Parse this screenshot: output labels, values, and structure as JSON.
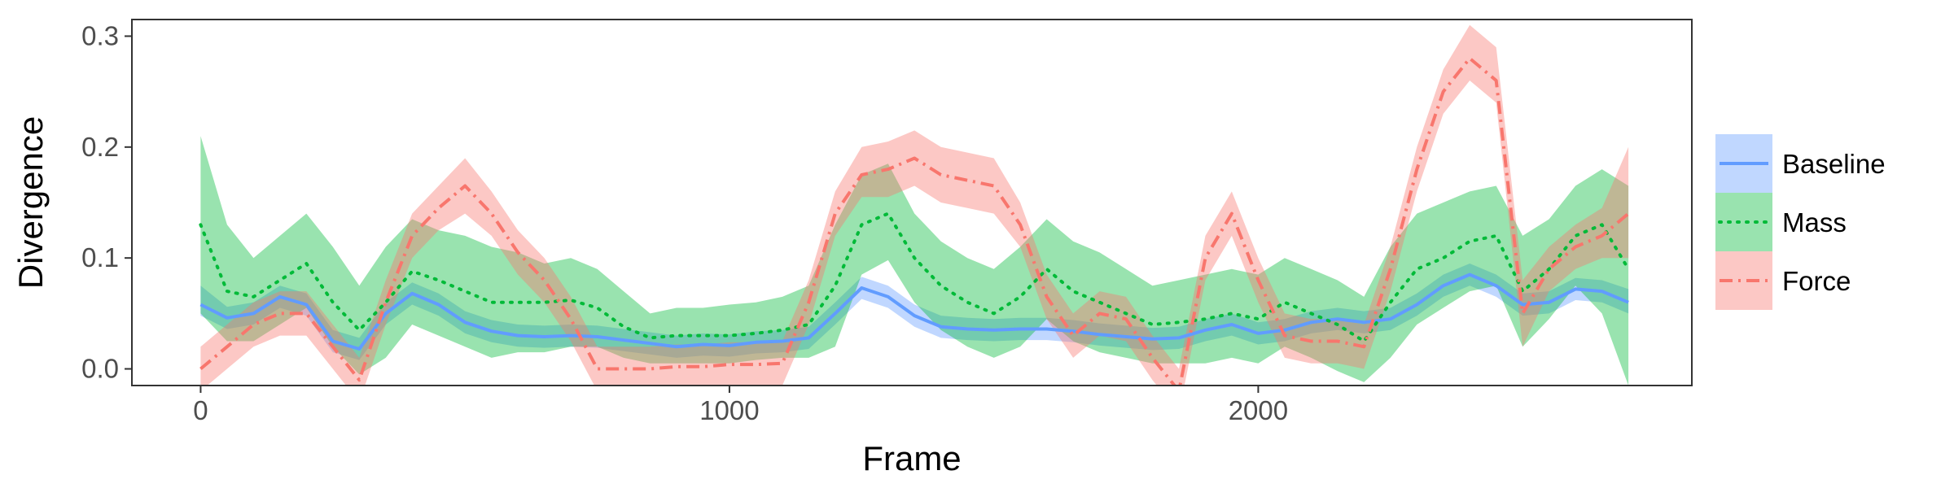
{
  "chart_data": {
    "type": "line",
    "title": "",
    "xlabel": "Frame",
    "ylabel": "Divergence",
    "xlim": [
      -130,
      2820
    ],
    "ylim": [
      -0.015,
      0.315
    ],
    "x_ticks": [
      0,
      1000,
      2000
    ],
    "x_tick_labels": [
      "0",
      "1000",
      "2000"
    ],
    "y_ticks": [
      0.0,
      0.1,
      0.2,
      0.3
    ],
    "y_tick_labels": [
      "0.0",
      "0.1",
      "0.2",
      "0.3"
    ],
    "grid": false,
    "legend_position": "right",
    "x": [
      0,
      50,
      100,
      150,
      200,
      250,
      300,
      350,
      400,
      450,
      500,
      550,
      600,
      650,
      700,
      750,
      800,
      850,
      900,
      950,
      1000,
      1050,
      1100,
      1150,
      1200,
      1250,
      1300,
      1350,
      1400,
      1450,
      1500,
      1550,
      1600,
      1650,
      1700,
      1750,
      1800,
      1850,
      1900,
      1950,
      2000,
      2050,
      2100,
      2150,
      2200,
      2250,
      2300,
      2350,
      2400,
      2450,
      2500,
      2550,
      2600,
      2650,
      2700
    ],
    "series": [
      {
        "name": "Baseline",
        "color": "#619CFF",
        "line_style": "solid",
        "values": [
          0.058,
          0.046,
          0.05,
          0.065,
          0.058,
          0.025,
          0.018,
          0.05,
          0.068,
          0.058,
          0.042,
          0.034,
          0.03,
          0.029,
          0.03,
          0.029,
          0.026,
          0.023,
          0.02,
          0.022,
          0.021,
          0.024,
          0.025,
          0.028,
          0.05,
          0.073,
          0.065,
          0.048,
          0.038,
          0.036,
          0.035,
          0.036,
          0.036,
          0.034,
          0.031,
          0.029,
          0.027,
          0.028,
          0.035,
          0.04,
          0.032,
          0.035,
          0.042,
          0.045,
          0.042,
          0.045,
          0.058,
          0.075,
          0.085,
          0.075,
          0.058,
          0.06,
          0.072,
          0.07,
          0.06
        ],
        "lower": [
          0.048,
          0.036,
          0.04,
          0.055,
          0.048,
          0.015,
          0.008,
          0.04,
          0.058,
          0.048,
          0.032,
          0.024,
          0.02,
          0.019,
          0.02,
          0.019,
          0.016,
          0.013,
          0.01,
          0.012,
          0.011,
          0.014,
          0.015,
          0.018,
          0.04,
          0.063,
          0.055,
          0.038,
          0.028,
          0.026,
          0.025,
          0.026,
          0.026,
          0.024,
          0.021,
          0.019,
          0.017,
          0.018,
          0.025,
          0.03,
          0.022,
          0.025,
          0.032,
          0.035,
          0.032,
          0.035,
          0.048,
          0.065,
          0.075,
          0.065,
          0.048,
          0.05,
          0.062,
          0.06,
          0.05
        ],
        "upper": [
          0.075,
          0.056,
          0.06,
          0.075,
          0.068,
          0.035,
          0.028,
          0.06,
          0.078,
          0.068,
          0.052,
          0.044,
          0.04,
          0.039,
          0.04,
          0.039,
          0.036,
          0.033,
          0.03,
          0.032,
          0.031,
          0.034,
          0.035,
          0.038,
          0.06,
          0.083,
          0.075,
          0.058,
          0.048,
          0.046,
          0.045,
          0.046,
          0.046,
          0.044,
          0.041,
          0.039,
          0.037,
          0.038,
          0.045,
          0.05,
          0.042,
          0.045,
          0.052,
          0.055,
          0.052,
          0.055,
          0.068,
          0.085,
          0.095,
          0.085,
          0.068,
          0.07,
          0.082,
          0.08,
          0.072
        ]
      },
      {
        "name": "Mass",
        "color": "#00BA38",
        "line_style": "dotted",
        "values": [
          0.13,
          0.07,
          0.065,
          0.08,
          0.095,
          0.06,
          0.035,
          0.06,
          0.088,
          0.08,
          0.07,
          0.06,
          0.06,
          0.06,
          0.062,
          0.055,
          0.038,
          0.028,
          0.03,
          0.03,
          0.03,
          0.032,
          0.035,
          0.04,
          0.075,
          0.13,
          0.14,
          0.1,
          0.075,
          0.06,
          0.05,
          0.065,
          0.09,
          0.07,
          0.06,
          0.05,
          0.04,
          0.042,
          0.045,
          0.05,
          0.045,
          0.06,
          0.05,
          0.04,
          0.025,
          0.06,
          0.09,
          0.1,
          0.115,
          0.12,
          0.07,
          0.09,
          0.12,
          0.13,
          0.09
        ],
        "lower": [
          0.05,
          0.025,
          0.025,
          0.04,
          0.055,
          0.02,
          -0.005,
          0.01,
          0.04,
          0.03,
          0.02,
          0.01,
          0.015,
          0.015,
          0.02,
          0.02,
          0.01,
          0.005,
          0.005,
          0.005,
          0.005,
          0.008,
          0.01,
          0.01,
          0.02,
          0.085,
          0.098,
          0.06,
          0.035,
          0.02,
          0.01,
          0.02,
          0.045,
          0.025,
          0.015,
          0.01,
          0.005,
          0.005,
          0.005,
          0.01,
          0.005,
          0.02,
          0.01,
          -0.002,
          -0.012,
          0.01,
          0.04,
          0.055,
          0.07,
          0.075,
          0.02,
          0.045,
          0.075,
          0.05,
          -0.015
        ],
        "upper": [
          0.21,
          0.13,
          0.1,
          0.12,
          0.14,
          0.11,
          0.075,
          0.11,
          0.135,
          0.125,
          0.12,
          0.11,
          0.105,
          0.095,
          0.1,
          0.09,
          0.07,
          0.05,
          0.055,
          0.055,
          0.058,
          0.06,
          0.065,
          0.075,
          0.13,
          0.175,
          0.185,
          0.14,
          0.115,
          0.1,
          0.09,
          0.11,
          0.135,
          0.115,
          0.105,
          0.09,
          0.075,
          0.08,
          0.085,
          0.09,
          0.085,
          0.1,
          0.09,
          0.08,
          0.065,
          0.11,
          0.14,
          0.15,
          0.16,
          0.165,
          0.12,
          0.135,
          0.165,
          0.18,
          0.165
        ]
      },
      {
        "name": "Force",
        "color": "#F8766D",
        "line_style": "dashdot",
        "values": [
          0.0,
          0.02,
          0.04,
          0.05,
          0.05,
          0.02,
          -0.01,
          0.06,
          0.12,
          0.145,
          0.165,
          0.14,
          0.105,
          0.08,
          0.045,
          0.0,
          0.0,
          0.0,
          0.002,
          0.002,
          0.004,
          0.004,
          0.005,
          0.06,
          0.14,
          0.175,
          0.18,
          0.19,
          0.175,
          0.17,
          0.165,
          0.13,
          0.065,
          0.03,
          0.05,
          0.045,
          0.01,
          -0.02,
          0.1,
          0.14,
          0.08,
          0.03,
          0.025,
          0.025,
          0.02,
          0.09,
          0.18,
          0.25,
          0.28,
          0.26,
          0.05,
          0.09,
          0.11,
          0.12,
          0.14
        ],
        "lower": [
          -0.02,
          0.0,
          0.02,
          0.03,
          0.03,
          0.0,
          -0.03,
          0.04,
          0.1,
          0.125,
          0.14,
          0.12,
          0.085,
          0.06,
          0.025,
          -0.02,
          -0.02,
          -0.02,
          -0.018,
          -0.018,
          -0.016,
          -0.016,
          -0.015,
          0.04,
          0.12,
          0.155,
          0.155,
          0.165,
          0.15,
          0.145,
          0.14,
          0.11,
          0.045,
          0.01,
          0.03,
          0.025,
          -0.01,
          -0.04,
          0.08,
          0.12,
          0.06,
          0.01,
          0.005,
          0.005,
          0.0,
          0.07,
          0.16,
          0.23,
          0.26,
          0.24,
          0.02,
          0.07,
          0.09,
          0.1,
          0.1
        ],
        "upper": [
          0.02,
          0.04,
          0.06,
          0.07,
          0.07,
          0.04,
          0.01,
          0.08,
          0.14,
          0.165,
          0.19,
          0.16,
          0.125,
          0.1,
          0.065,
          0.02,
          0.02,
          0.02,
          0.022,
          0.022,
          0.024,
          0.024,
          0.025,
          0.08,
          0.16,
          0.2,
          0.205,
          0.215,
          0.2,
          0.195,
          0.19,
          0.15,
          0.085,
          0.05,
          0.07,
          0.065,
          0.03,
          0.0,
          0.12,
          0.16,
          0.1,
          0.05,
          0.045,
          0.045,
          0.04,
          0.11,
          0.2,
          0.27,
          0.31,
          0.29,
          0.08,
          0.11,
          0.13,
          0.145,
          0.2
        ]
      }
    ]
  }
}
